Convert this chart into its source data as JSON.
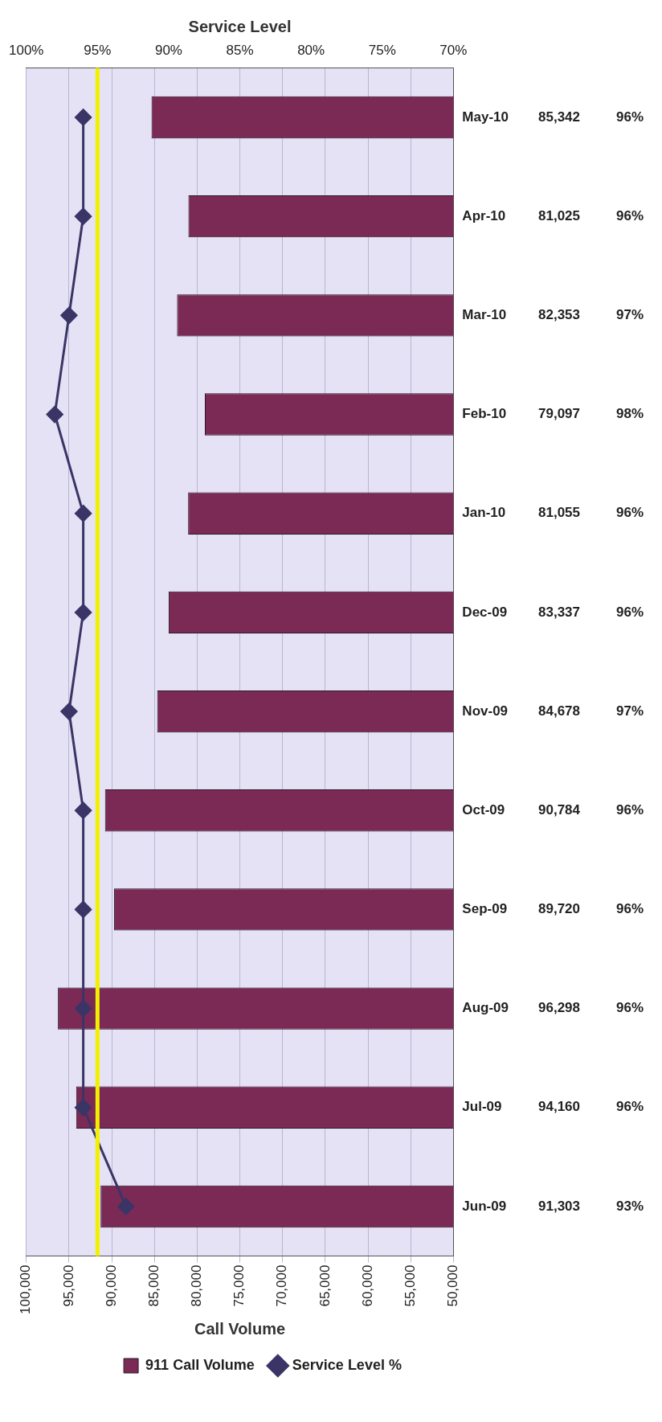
{
  "chart_data": {
    "type": "bar",
    "orientation": "horizontal",
    "xlabel": "Call Volume",
    "x2label": "Service Level",
    "categories": [
      "May-10",
      "Apr-10",
      "Mar-10",
      "Feb-10",
      "Jan-10",
      "Dec-09",
      "Nov-09",
      "Oct-09",
      "Sep-09",
      "Aug-09",
      "Jul-09",
      "Jun-09"
    ],
    "series": [
      {
        "name": "911 Call Volume",
        "color": "#7b2a55",
        "values": [
          85342,
          81025,
          82353,
          79097,
          81055,
          83337,
          84678,
          90784,
          89720,
          96298,
          94160,
          91303
        ],
        "value_labels": [
          "85,342",
          "81,025",
          "82,353",
          "79,097",
          "81,055",
          "83,337",
          "84,678",
          "90,784",
          "89,720",
          "96,298",
          "94,160",
          "91,303"
        ]
      },
      {
        "name": "Service Level %",
        "type": "line",
        "axis": "x2",
        "color": "#3a3566",
        "marker": "diamond",
        "values": [
          96,
          96,
          97,
          98,
          96,
          96,
          97,
          96,
          96,
          96,
          96,
          93
        ],
        "value_labels": [
          "96%",
          "96%",
          "97%",
          "98%",
          "96%",
          "96%",
          "97%",
          "96%",
          "96%",
          "96%",
          "96%",
          "93%"
        ]
      }
    ],
    "xlim": [
      100000,
      50000
    ],
    "xticks": [
      {
        "value": 100000,
        "label": "100,000"
      },
      {
        "value": 95000,
        "label": "95,000"
      },
      {
        "value": 90000,
        "label": "90,000"
      },
      {
        "value": 85000,
        "label": "85,000"
      },
      {
        "value": 80000,
        "label": "80,000"
      },
      {
        "value": 75000,
        "label": "75,000"
      },
      {
        "value": 70000,
        "label": "70,000"
      },
      {
        "value": 65000,
        "label": "65,000"
      },
      {
        "value": 60000,
        "label": "60,000"
      },
      {
        "value": 55000,
        "label": "55,000"
      },
      {
        "value": 50000,
        "label": "50,000"
      }
    ],
    "x2lim": [
      100,
      70
    ],
    "x2ticks": [
      {
        "value": 100,
        "label": "100%"
      },
      {
        "value": 95,
        "label": "95%"
      },
      {
        "value": 90,
        "label": "90%"
      },
      {
        "value": 85,
        "label": "85%"
      },
      {
        "value": 80,
        "label": "80%"
      },
      {
        "value": 75,
        "label": "75%"
      },
      {
        "value": 70,
        "label": "70%"
      }
    ],
    "ref_lines": [
      {
        "axis": "x2",
        "value": 95,
        "color": "#f2f000"
      }
    ],
    "grid": "x",
    "legend": "bottom"
  }
}
